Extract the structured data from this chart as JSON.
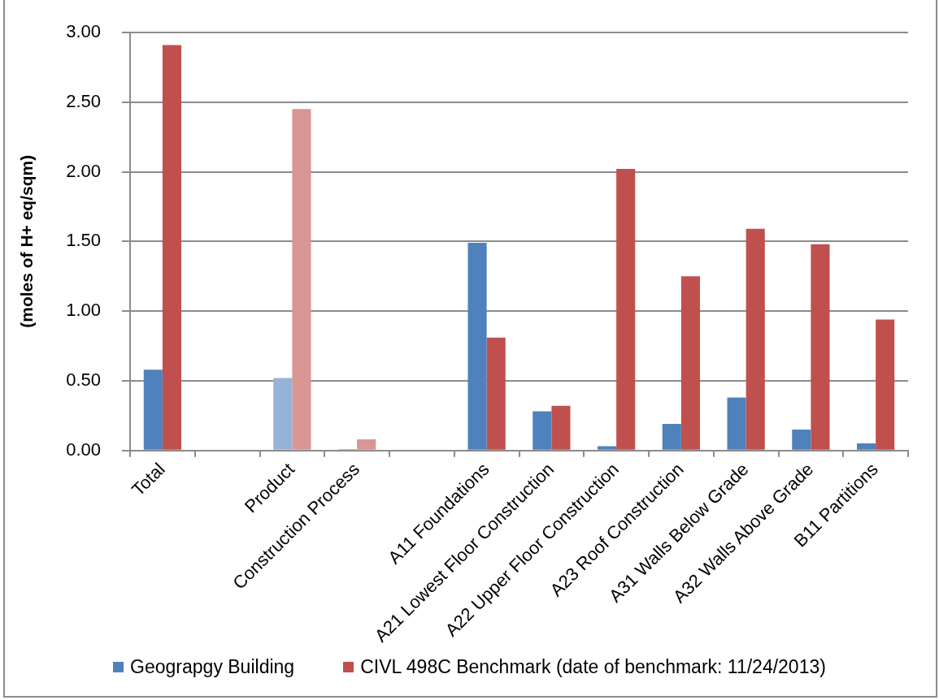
{
  "chart_data": {
    "type": "bar",
    "ylabel": "(moles of H+ eq/sqm)",
    "categories": [
      "Total",
      null,
      "Product",
      "Construction Process",
      null,
      "A11 Foundations",
      "A21 Lowest Floor Construction",
      "A22 Upper Floor Construction",
      "A23 Roof Construction",
      "A31 Walls Below Grade",
      "A32 Walls Above Grade",
      "B11 Partitions"
    ],
    "series": [
      {
        "name": "Geograpgy Building",
        "color": "#4f81bd",
        "colors": [
          "#4f81bd",
          "#4f81bd",
          "#95b3d7",
          "#95b3d7",
          "#4f81bd",
          "#4f81bd",
          "#4f81bd",
          "#4f81bd",
          "#4f81bd",
          "#4f81bd",
          "#4f81bd",
          "#4f81bd"
        ],
        "values": [
          0.58,
          null,
          0.52,
          0.01,
          null,
          1.49,
          0.28,
          0.03,
          0.19,
          0.38,
          0.15,
          0.05
        ]
      },
      {
        "name": "CIVL 498C Benchmark (date of benchmark: 11/24/2013)",
        "color": "#c0504d",
        "colors": [
          "#c0504d",
          "#c0504d",
          "#d99694",
          "#d99694",
          "#c0504d",
          "#c0504d",
          "#c0504d",
          "#c0504d",
          "#c0504d",
          "#c0504d",
          "#c0504d",
          "#c0504d"
        ],
        "values": [
          2.91,
          null,
          2.45,
          0.08,
          null,
          0.81,
          0.32,
          2.02,
          1.25,
          1.59,
          1.48,
          0.94
        ]
      }
    ],
    "ylim": [
      0,
      3
    ],
    "yticks": [
      {
        "value": 0,
        "label": "0.00"
      },
      {
        "value": 0.5,
        "label": "0.50"
      },
      {
        "value": 1,
        "label": "1.00"
      },
      {
        "value": 1.5,
        "label": "1.50"
      },
      {
        "value": 2,
        "label": "2.00"
      },
      {
        "value": 2.5,
        "label": "2.50"
      },
      {
        "value": 3,
        "label": "3.00"
      }
    ],
    "grid": "y",
    "legend": "bottom"
  }
}
